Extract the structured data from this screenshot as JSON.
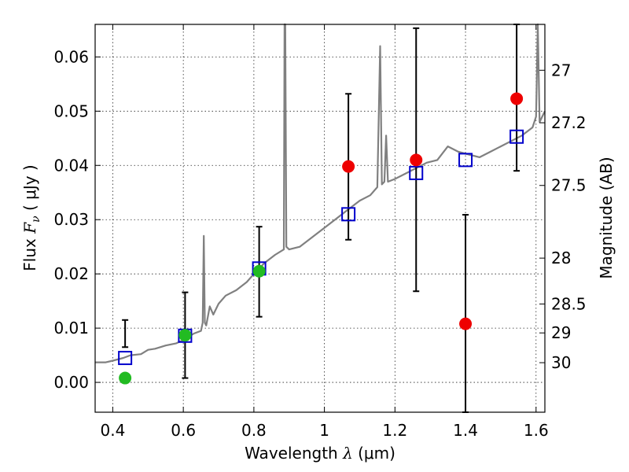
{
  "chart_data": {
    "type": "scatter",
    "title": "",
    "xlabel": "Wavelength  λ (μm)",
    "xlabel_parts": {
      "main": "Wavelength  ",
      "sym": "λ",
      "unit": " (μm)"
    },
    "ylabel": "Flux  Fν  ( μJy )",
    "ylabel_parts": {
      "main": "Flux  ",
      "sym": "F",
      "sub": "ν",
      "unit": "  ( μJy )"
    },
    "y2label": "Magnitude (AB)",
    "xlim": [
      0.35,
      1.625
    ],
    "ylim": [
      -0.0055,
      0.066
    ],
    "grid": true,
    "x_ticks": [
      {
        "value": 0.4,
        "label": "0.4"
      },
      {
        "value": 0.6,
        "label": "0.6"
      },
      {
        "value": 0.8,
        "label": "0.8"
      },
      {
        "value": 1.0,
        "label": "1"
      },
      {
        "value": 1.2,
        "label": "1.2"
      },
      {
        "value": 1.4,
        "label": "1.4"
      },
      {
        "value": 1.6,
        "label": "1.6"
      }
    ],
    "y_ticks": [
      {
        "value": 0.0,
        "label": "0.00"
      },
      {
        "value": 0.01,
        "label": "0.01"
      },
      {
        "value": 0.02,
        "label": "0.02"
      },
      {
        "value": 0.03,
        "label": "0.03"
      },
      {
        "value": 0.04,
        "label": "0.04"
      },
      {
        "value": 0.05,
        "label": "0.05"
      },
      {
        "value": 0.06,
        "label": "0.06"
      }
    ],
    "y2_ticks": [
      {
        "value": 27,
        "label": "27"
      },
      {
        "value": 27.2,
        "label": "27.2"
      },
      {
        "value": 27.5,
        "label": "27.5"
      },
      {
        "value": 28,
        "label": "28"
      },
      {
        "value": 28.5,
        "label": "28.5"
      },
      {
        "value": 29,
        "label": "29"
      },
      {
        "value": 30,
        "label": "30"
      }
    ],
    "colors": {
      "spectrum": "#808080",
      "model": "#0000cc",
      "detection": "#ee0000",
      "optical": "#22bb22",
      "errorbar": "#000000"
    },
    "series": [
      {
        "type": "line",
        "points": [
          [
            0.35,
            0.0037
          ],
          [
            0.38,
            0.0037
          ],
          [
            0.4,
            0.004
          ],
          [
            0.43,
            0.0045
          ],
          [
            0.45,
            0.005
          ],
          [
            0.48,
            0.0052
          ],
          [
            0.5,
            0.006
          ],
          [
            0.52,
            0.0062
          ],
          [
            0.55,
            0.0068
          ],
          [
            0.58,
            0.0072
          ],
          [
            0.6,
            0.0078
          ],
          [
            0.63,
            0.009
          ],
          [
            0.65,
            0.0095
          ],
          [
            0.655,
            0.011
          ],
          [
            0.658,
            0.027
          ],
          [
            0.661,
            0.011
          ],
          [
            0.665,
            0.0105
          ],
          [
            0.675,
            0.014
          ],
          [
            0.685,
            0.0125
          ],
          [
            0.7,
            0.0145
          ],
          [
            0.72,
            0.016
          ],
          [
            0.75,
            0.017
          ],
          [
            0.78,
            0.0185
          ],
          [
            0.8,
            0.02
          ],
          [
            0.83,
            0.022
          ],
          [
            0.86,
            0.0235
          ],
          [
            0.885,
            0.0245
          ],
          [
            0.887,
            0.066
          ],
          [
            0.889,
            0.066
          ],
          [
            0.892,
            0.025
          ],
          [
            0.9,
            0.0245
          ],
          [
            0.93,
            0.025
          ],
          [
            0.96,
            0.0265
          ],
          [
            1.0,
            0.0285
          ],
          [
            1.03,
            0.03
          ],
          [
            1.06,
            0.0315
          ],
          [
            1.1,
            0.0335
          ],
          [
            1.13,
            0.0345
          ],
          [
            1.15,
            0.036
          ],
          [
            1.158,
            0.062
          ],
          [
            1.163,
            0.0365
          ],
          [
            1.17,
            0.037
          ],
          [
            1.175,
            0.0455
          ],
          [
            1.18,
            0.037
          ],
          [
            1.2,
            0.0375
          ],
          [
            1.23,
            0.0385
          ],
          [
            1.26,
            0.0395
          ],
          [
            1.29,
            0.0405
          ],
          [
            1.32,
            0.041
          ],
          [
            1.35,
            0.0435
          ],
          [
            1.38,
            0.0425
          ],
          [
            1.41,
            0.042
          ],
          [
            1.44,
            0.0415
          ],
          [
            1.47,
            0.0425
          ],
          [
            1.5,
            0.0435
          ],
          [
            1.53,
            0.0445
          ],
          [
            1.56,
            0.0455
          ],
          [
            1.59,
            0.047
          ],
          [
            1.6,
            0.049
          ],
          [
            1.605,
            0.066
          ],
          [
            1.61,
            0.048
          ],
          [
            1.625,
            0.05
          ]
        ]
      },
      {
        "type": "scatter",
        "marker": "open-square",
        "points": [
          [
            0.435,
            0.0045
          ],
          [
            0.605,
            0.0086
          ],
          [
            0.815,
            0.021
          ],
          [
            1.068,
            0.031
          ],
          [
            1.26,
            0.0386
          ],
          [
            1.4,
            0.041
          ],
          [
            1.545,
            0.0453
          ]
        ]
      },
      {
        "type": "scatter",
        "marker": "filled-circle",
        "color_key": "optical",
        "points": [
          [
            0.435,
            0.0008,
            0.0065,
            0.0115
          ],
          [
            0.605,
            0.0087,
            0.0008,
            0.0166
          ],
          [
            0.815,
            0.0205,
            0.0121,
            0.0287
          ]
        ]
      },
      {
        "type": "scatter",
        "marker": "filled-circle",
        "color_key": "detection",
        "points": [
          [
            1.068,
            0.0398,
            0.0263,
            0.0532
          ],
          [
            1.26,
            0.041,
            0.0168,
            0.0653
          ],
          [
            1.4,
            0.0108,
            -0.0055,
            0.0309
          ],
          [
            1.545,
            0.0523,
            0.039,
            0.066
          ]
        ]
      }
    ]
  }
}
